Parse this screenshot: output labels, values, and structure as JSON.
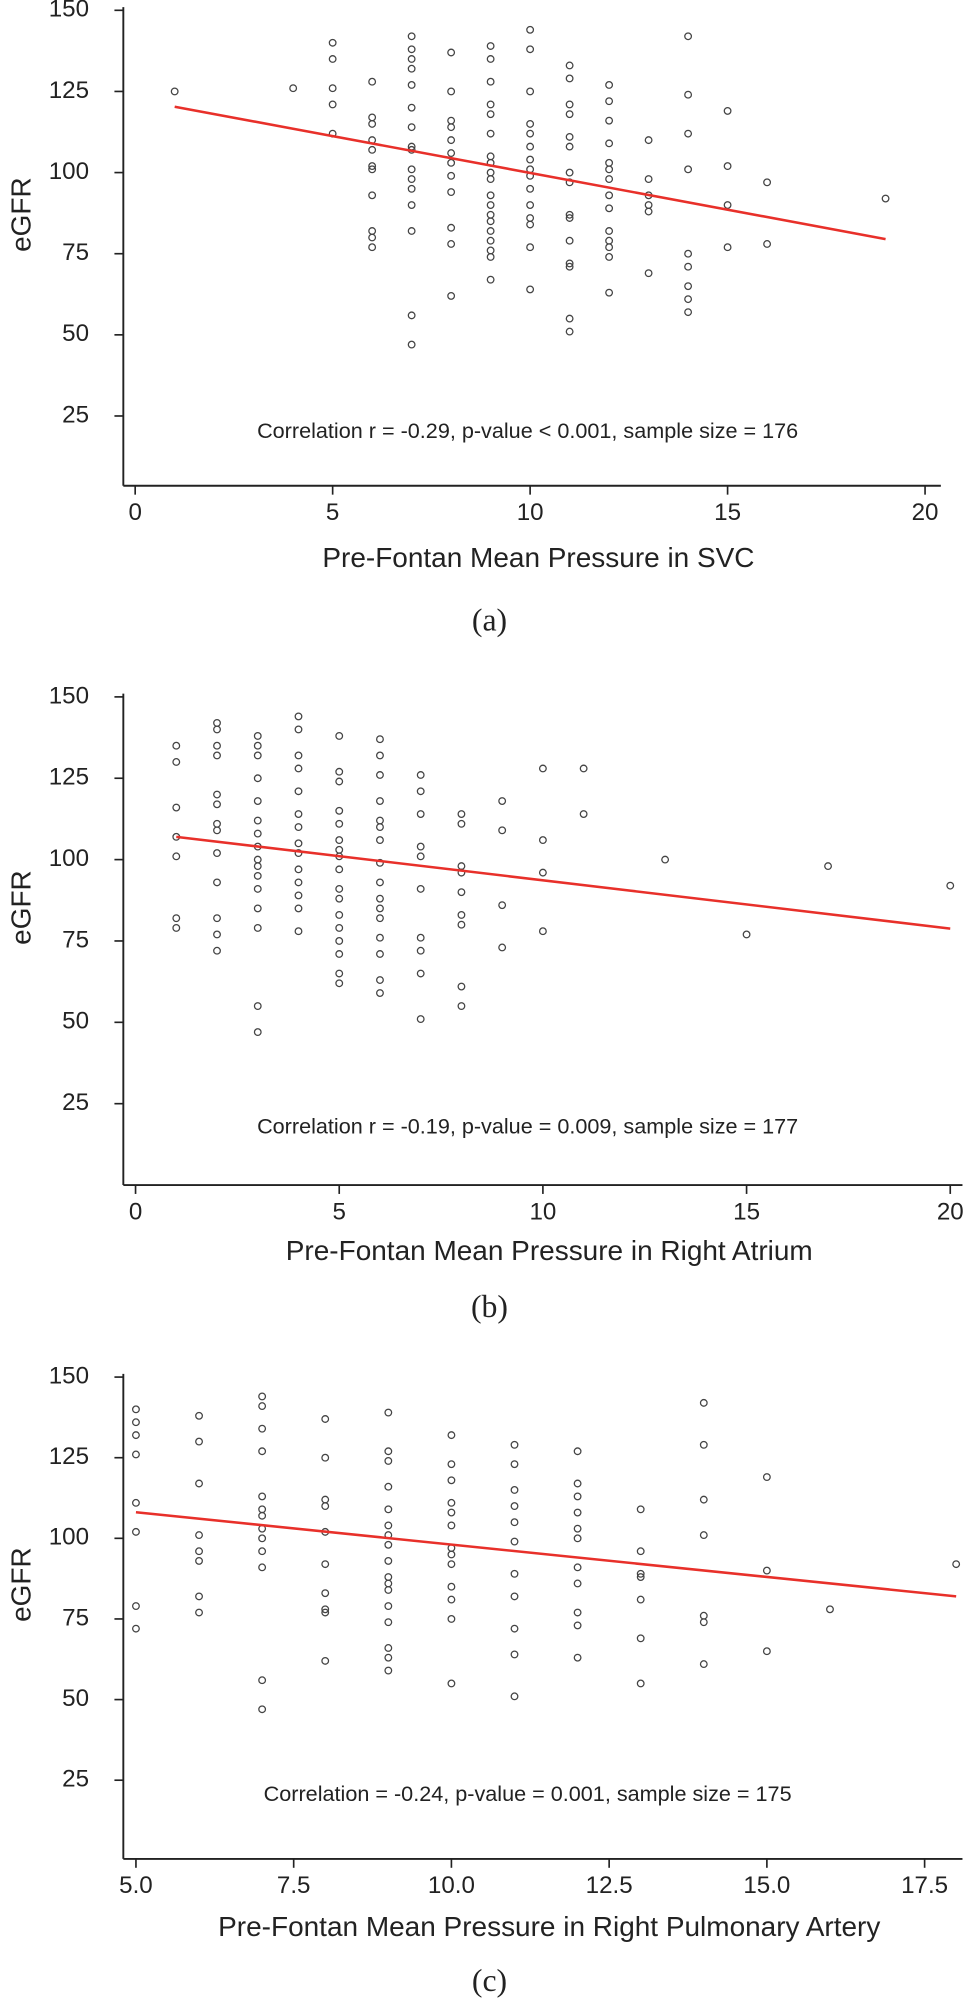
{
  "chart_data": [
    {
      "type": "scatter",
      "caption": "(a)",
      "xlabel": "Pre-Fontan Mean Pressure in SVC",
      "ylabel": "eGFR",
      "annotation": "Correlation r = -0.29, p-value < 0.001, sample size = 176",
      "color": "#444444",
      "x": [
        1,
        4,
        5,
        5,
        5,
        5,
        5,
        6,
        6,
        6,
        6,
        6,
        6,
        6,
        6,
        6,
        6,
        6,
        7,
        7,
        7,
        7,
        7,
        7,
        7,
        7,
        7,
        7,
        7,
        7,
        7,
        7,
        7,
        7,
        8,
        8,
        8,
        8,
        8,
        8,
        8,
        8,
        8,
        8,
        8,
        8,
        9,
        9,
        9,
        9,
        9,
        9,
        9,
        9,
        9,
        9,
        9,
        9,
        9,
        9,
        9,
        9,
        9,
        9,
        9,
        10,
        10,
        10,
        10,
        10,
        10,
        10,
        10,
        10,
        10,
        10,
        10,
        10,
        10,
        10,
        11,
        11,
        11,
        11,
        11,
        11,
        11,
        11,
        11,
        11,
        11,
        11,
        11,
        11,
        11,
        12,
        12,
        12,
        12,
        12,
        12,
        12,
        12,
        12,
        12,
        12,
        12,
        12,
        12,
        13,
        13,
        13,
        13,
        13,
        13,
        14,
        14,
        14,
        14,
        14,
        14,
        14,
        14,
        14,
        15,
        15,
        15,
        15,
        16,
        16,
        19
      ],
      "y": [
        125,
        126,
        140,
        135,
        126,
        121,
        112,
        128,
        117,
        115,
        110,
        107,
        102,
        101,
        93,
        82,
        80,
        77,
        142,
        138,
        135,
        132,
        127,
        120,
        114,
        108,
        107,
        101,
        98,
        95,
        90,
        82,
        56,
        47,
        137,
        125,
        116,
        114,
        110,
        106,
        103,
        99,
        94,
        83,
        78,
        62,
        139,
        135,
        128,
        121,
        118,
        112,
        105,
        103,
        100,
        98,
        93,
        90,
        87,
        85,
        82,
        79,
        76,
        74,
        67,
        144,
        138,
        125,
        115,
        112,
        108,
        104,
        101,
        99,
        95,
        90,
        86,
        84,
        77,
        64,
        133,
        129,
        121,
        118,
        111,
        108,
        100,
        97,
        87,
        86,
        79,
        72,
        71,
        55,
        51,
        127,
        122,
        116,
        109,
        103,
        101,
        98,
        93,
        89,
        82,
        79,
        77,
        74,
        63,
        110,
        98,
        93,
        90,
        88,
        69,
        142,
        124,
        112,
        101,
        75,
        71,
        65,
        61,
        57,
        119,
        102,
        90,
        77,
        97,
        78,
        92
      ],
      "fit": {
        "x": [
          1,
          19
        ],
        "y": [
          120.3,
          79.5
        ],
        "color": "#e8302a"
      },
      "xlim": [
        -0.3,
        20.4
      ],
      "ylim": [
        3.5,
        151
      ],
      "xticks": [
        0,
        5,
        10,
        15,
        20
      ],
      "yticks": [
        25,
        50,
        75,
        100,
        125,
        150
      ]
    },
    {
      "type": "scatter",
      "caption": "(b)",
      "xlabel": "Pre-Fontan Mean Pressure in Right Atrium",
      "ylabel": "eGFR",
      "annotation": "Correlation r = -0.19, p-value = 0.009, sample size = 177",
      "color": "#444444",
      "x": [
        1,
        1,
        1,
        1,
        1,
        1,
        1,
        2,
        2,
        2,
        2,
        2,
        2,
        2,
        2,
        2,
        2,
        2,
        2,
        2,
        3,
        3,
        3,
        3,
        3,
        3,
        3,
        3,
        3,
        3,
        3,
        3,
        3,
        3,
        3,
        3,
        4,
        4,
        4,
        4,
        4,
        4,
        4,
        4,
        4,
        4,
        4,
        4,
        4,
        4,
        5,
        5,
        5,
        5,
        5,
        5,
        5,
        5,
        5,
        5,
        5,
        5,
        5,
        5,
        5,
        5,
        5,
        6,
        6,
        6,
        6,
        6,
        6,
        6,
        6,
        6,
        6,
        6,
        6,
        6,
        6,
        6,
        6,
        7,
        7,
        7,
        7,
        7,
        7,
        7,
        7,
        7,
        7,
        8,
        8,
        8,
        8,
        8,
        8,
        8,
        8,
        8,
        9,
        9,
        9,
        9,
        10,
        10,
        10,
        10,
        11,
        11,
        13,
        15,
        17,
        20
      ],
      "y": [
        135,
        130,
        116,
        107,
        101,
        82,
        79,
        142,
        140,
        135,
        132,
        120,
        117,
        111,
        109,
        102,
        93,
        82,
        77,
        72,
        138,
        135,
        132,
        125,
        118,
        112,
        108,
        104,
        100,
        98,
        95,
        91,
        85,
        79,
        55,
        47,
        144,
        140,
        132,
        128,
        121,
        114,
        110,
        105,
        102,
        97,
        93,
        89,
        85,
        78,
        138,
        127,
        124,
        115,
        111,
        106,
        103,
        101,
        97,
        91,
        88,
        83,
        79,
        75,
        71,
        65,
        62,
        137,
        132,
        126,
        118,
        112,
        110,
        106,
        99,
        93,
        88,
        85,
        82,
        76,
        71,
        63,
        59,
        126,
        121,
        114,
        104,
        101,
        91,
        76,
        72,
        65,
        51,
        114,
        111,
        98,
        96,
        90,
        83,
        80,
        61,
        55,
        118,
        109,
        86,
        73,
        128,
        106,
        96,
        78,
        128,
        114,
        100,
        77,
        98,
        92
      ],
      "fit": {
        "x": [
          1,
          20
        ],
        "y": [
          107,
          78.8
        ],
        "color": "#e8302a"
      },
      "xlim": [
        -0.3,
        20.3
      ],
      "ylim": [
        0,
        151
      ],
      "xticks": [
        0,
        5,
        10,
        15,
        20
      ],
      "yticks": [
        25,
        50,
        75,
        100,
        125,
        150
      ]
    },
    {
      "type": "scatter",
      "caption": "(c)",
      "xlabel": "Pre-Fontan Mean Pressure in Right Pulmonary Artery",
      "ylabel": "eGFR",
      "annotation": "Correlation = -0.24, p-value = 0.001, sample size = 175",
      "color": "#444444",
      "x": [
        5,
        5,
        5,
        5,
        5,
        5,
        5,
        5,
        6,
        6,
        6,
        6,
        6,
        6,
        6,
        6,
        7,
        7,
        7,
        7,
        7,
        7,
        7,
        7,
        7,
        7,
        7,
        7,
        7,
        8,
        8,
        8,
        8,
        8,
        8,
        8,
        8,
        8,
        8,
        9,
        9,
        9,
        9,
        9,
        9,
        9,
        9,
        9,
        9,
        9,
        9,
        9,
        9,
        9,
        9,
        9,
        10,
        10,
        10,
        10,
        10,
        10,
        10,
        10,
        10,
        10,
        10,
        10,
        10,
        11,
        11,
        11,
        11,
        11,
        11,
        11,
        11,
        11,
        11,
        11,
        12,
        12,
        12,
        12,
        12,
        12,
        12,
        12,
        12,
        12,
        12,
        13,
        13,
        13,
        13,
        13,
        13,
        13,
        14,
        14,
        14,
        14,
        14,
        14,
        14,
        15,
        15,
        15,
        16,
        18
      ],
      "y": [
        140,
        136,
        132,
        126,
        111,
        102,
        79,
        72,
        138,
        130,
        117,
        101,
        96,
        93,
        82,
        77,
        144,
        141,
        134,
        127,
        113,
        109,
        107,
        103,
        100,
        96,
        91,
        56,
        47,
        137,
        125,
        112,
        110,
        102,
        92,
        83,
        78,
        77,
        62,
        139,
        127,
        124,
        116,
        109,
        104,
        101,
        98,
        93,
        88,
        86,
        84,
        79,
        74,
        66,
        63,
        59,
        132,
        123,
        118,
        111,
        108,
        104,
        97,
        95,
        92,
        85,
        81,
        75,
        55,
        129,
        123,
        115,
        110,
        105,
        99,
        89,
        82,
        72,
        64,
        51,
        127,
        117,
        113,
        108,
        103,
        100,
        91,
        86,
        77,
        73,
        63,
        109,
        96,
        89,
        88,
        81,
        69,
        55,
        142,
        129,
        112,
        101,
        76,
        74,
        61,
        119,
        90,
        65,
        78,
        92
      ],
      "fit": {
        "x": [
          5,
          18
        ],
        "y": [
          108.1,
          82
        ],
        "color": "#e8302a"
      },
      "xlim": [
        4.8,
        18.1
      ],
      "ylim": [
        0.6,
        151
      ],
      "xticks": [
        {
          "value": 5,
          "label": "5.0"
        },
        7.5,
        {
          "value": 10,
          "label": "10.0"
        },
        12.5,
        {
          "value": 15,
          "label": "15.0"
        },
        17.5
      ],
      "yticks": [
        25,
        50,
        75,
        100,
        125,
        150
      ]
    }
  ]
}
